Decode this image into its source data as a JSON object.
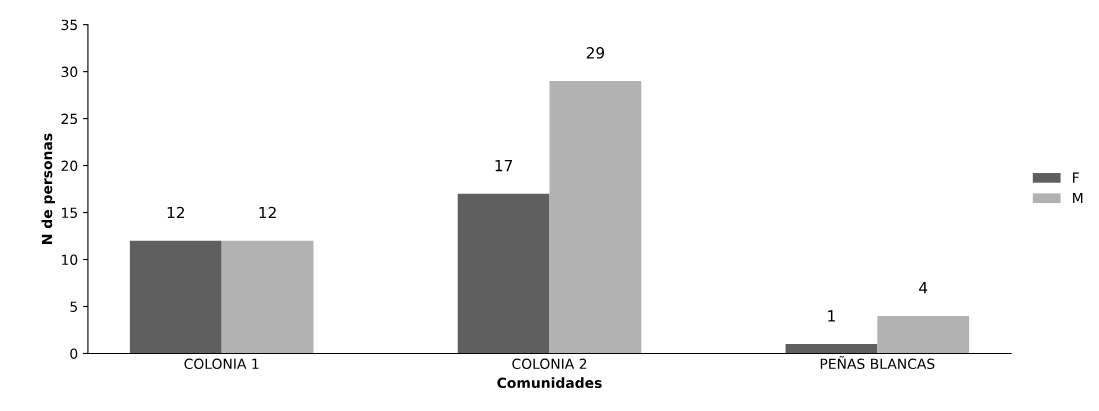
{
  "chart_data": {
    "type": "bar",
    "xlabel": "Comunidades",
    "ylabel": "N de personas",
    "categories": [
      "COLONIA 1",
      "COLONIA 2",
      "PEÑAS BLANCAS"
    ],
    "series": [
      {
        "name": "F",
        "color": "#5f5f5f",
        "values": [
          12,
          17,
          1
        ]
      },
      {
        "name": "M",
        "color": "#b2b2b2",
        "values": [
          12,
          29,
          4
        ]
      }
    ],
    "ylim": [
      0,
      35
    ],
    "yticks": [
      0,
      5,
      10,
      15,
      20,
      25,
      30,
      35
    ],
    "data_labels": true,
    "legend": "right",
    "grid": false
  }
}
